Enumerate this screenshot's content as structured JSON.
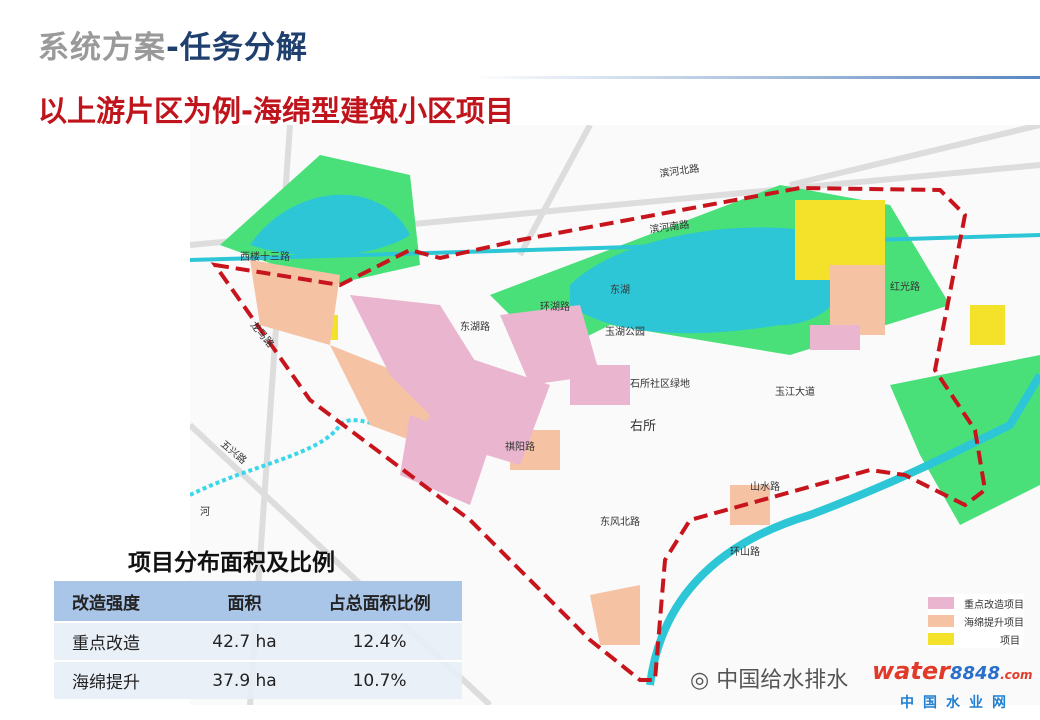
{
  "header": {
    "title_gray": "系统方案",
    "title_blue": "-任务分解",
    "subtitle": "以上游片区为例-海绵型建筑小区项目"
  },
  "map": {
    "labels": [
      "滨河北路",
      "滨河南路",
      "西楼十三路",
      "东湖",
      "玉湖公园",
      "右所",
      "石所社区绿地",
      "玉江大道",
      "红光路",
      "山水路",
      "环山路",
      "东风北路",
      "龙马路",
      "五兴路",
      "祺阳路",
      "环湖路",
      "东湖路",
      "河"
    ],
    "colors": {
      "park": "#49e07a",
      "water": "#2cc6d6",
      "boundary": "#c8141c",
      "key_renovation": "#eab5cf",
      "sponge_upgrade": "#f5c2a4",
      "other": "#f4e12a"
    }
  },
  "table": {
    "title": "项目分布面积及比例",
    "columns": [
      "改造强度",
      "面积",
      "占总面积比例"
    ],
    "rows": [
      [
        "重点改造",
        "42.7 ha",
        "12.4%"
      ],
      [
        "海绵提升",
        "37.9 ha",
        "10.7%"
      ]
    ]
  },
  "legend": {
    "items": [
      {
        "label": "重点改造项目",
        "color": "#eab5cf"
      },
      {
        "label": "海绵提升项目",
        "color": "#f5c2a4"
      },
      {
        "label": "项目",
        "color": "#f4e12a"
      }
    ]
  },
  "watermark": {
    "wechat": "中国给水排水",
    "brand_a": "water",
    "brand_b": "8848",
    "brand_c": ".com",
    "site": "中国水业网"
  }
}
